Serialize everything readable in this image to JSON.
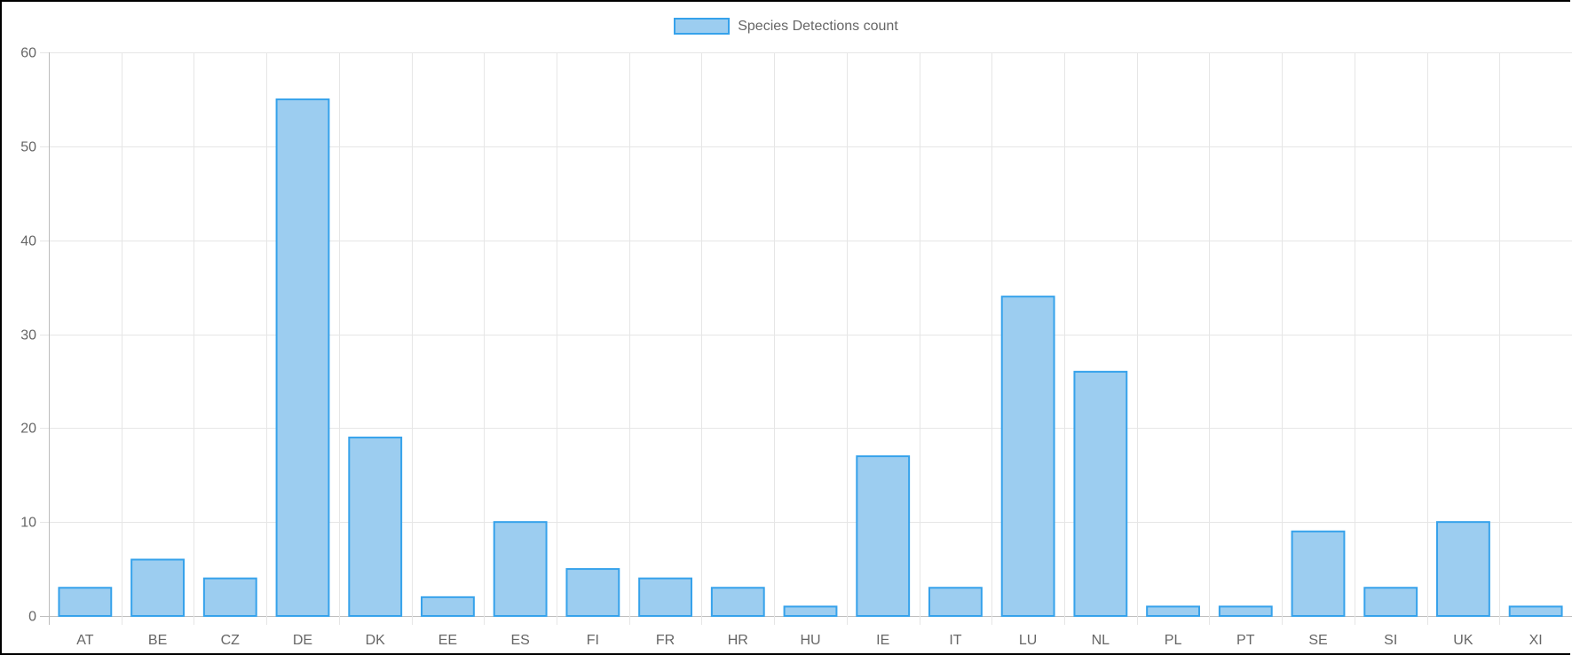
{
  "chart_data": {
    "type": "bar",
    "categories": [
      "AT",
      "BE",
      "CZ",
      "DE",
      "DK",
      "EE",
      "ES",
      "FI",
      "FR",
      "HR",
      "HU",
      "IE",
      "IT",
      "LU",
      "NL",
      "PL",
      "PT",
      "SE",
      "SI",
      "UK",
      "XI"
    ],
    "series": [
      {
        "name": "Species Detections count",
        "values": [
          3,
          6,
          4,
          55,
          19,
          2,
          10,
          5,
          4,
          3,
          1,
          17,
          3,
          34,
          26,
          1,
          1,
          9,
          3,
          10,
          1
        ]
      }
    ],
    "ylim": [
      0,
      60
    ],
    "yticks": [
      0,
      10,
      20,
      30,
      40,
      50,
      60
    ],
    "grid": true,
    "legend_position": "top-center",
    "colors": {
      "bar_fill": "#9ccdf0",
      "bar_border": "#36a2eb",
      "grid": "#e6e6e6",
      "axis_text": "#666666"
    }
  }
}
